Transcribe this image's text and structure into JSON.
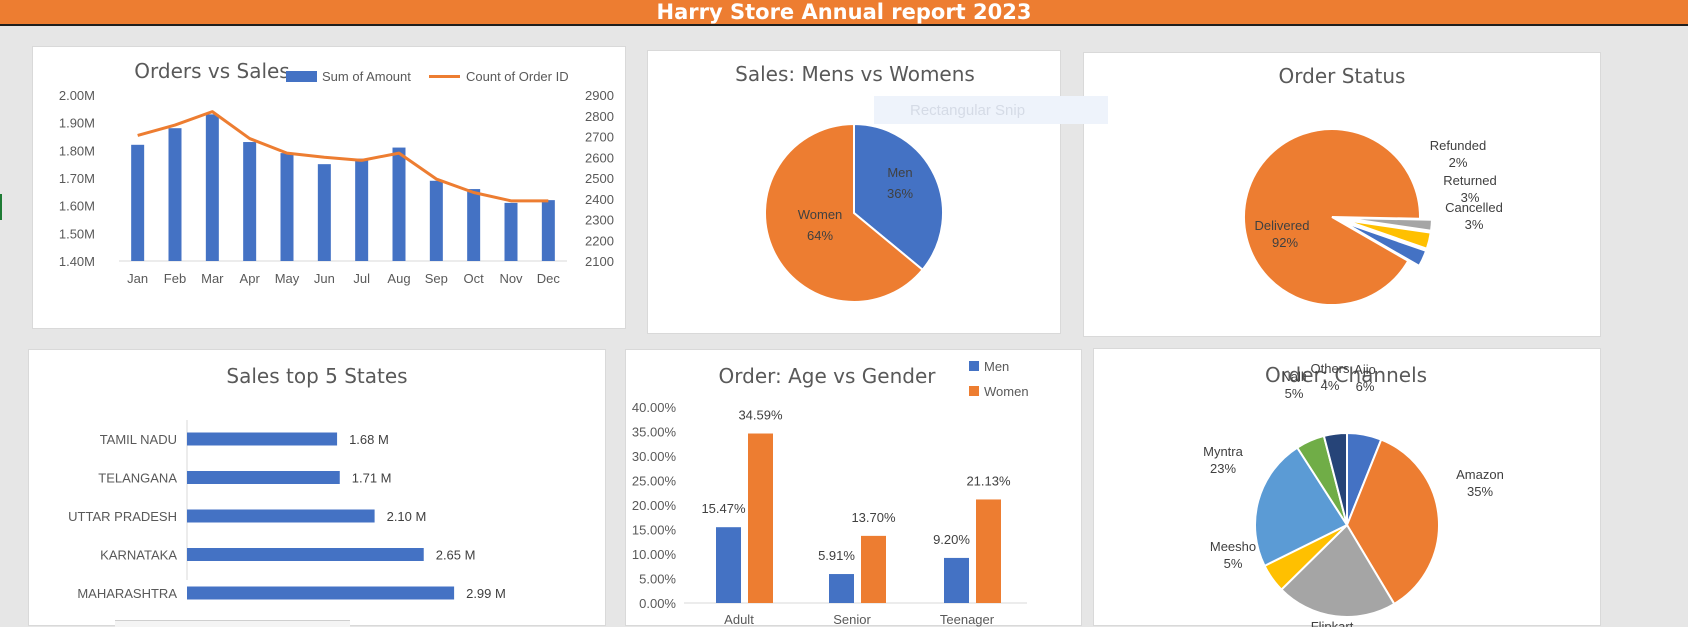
{
  "banner": {
    "title": "Harry Store Annual report 2023"
  },
  "ghost_tooltip": "Rectangular Snip",
  "colors": {
    "blue": "#4472c4",
    "orange": "#ed7d31",
    "gray": "#a5a5a5",
    "gold": "#ffc000",
    "lightblue": "#5b9bd5",
    "green": "#70ad47",
    "navy": "#264478"
  },
  "chart_data": [
    {
      "id": "orders_sales",
      "type": "bar",
      "title": "Orders vs Sales",
      "categories": [
        "Jan",
        "Feb",
        "Mar",
        "Apr",
        "May",
        "Jun",
        "Jul",
        "Aug",
        "Sep",
        "Oct",
        "Nov",
        "Dec"
      ],
      "series": [
        {
          "name": "Sum of Amount",
          "axis": "left",
          "values": [
            1.82,
            1.88,
            1.93,
            1.83,
            1.79,
            1.75,
            1.77,
            1.81,
            1.69,
            1.66,
            1.61,
            1.62
          ]
        },
        {
          "name": "Count of Order ID",
          "type": "line",
          "axis": "right",
          "values": [
            2705,
            2755,
            2820,
            2690,
            2620,
            2600,
            2585,
            2620,
            2495,
            2430,
            2390,
            2390
          ]
        }
      ],
      "ylim_left": [
        1.4,
        2.0
      ],
      "yticks_left": [
        "1.40M",
        "1.50M",
        "1.60M",
        "1.70M",
        "1.80M",
        "1.90M",
        "2.00M"
      ],
      "ylim_right": [
        2100,
        2900
      ],
      "yticks_right": [
        "2100",
        "2200",
        "2300",
        "2400",
        "2500",
        "2600",
        "2700",
        "2800",
        "2900"
      ],
      "legend": "top-right",
      "grid": false
    },
    {
      "id": "mens_womens",
      "type": "pie",
      "title": "Sales: Mens vs Womens",
      "slices": [
        {
          "label": "Men",
          "value": 36,
          "text": "36%"
        },
        {
          "label": "Women",
          "value": 64,
          "text": "64%"
        }
      ]
    },
    {
      "id": "order_status",
      "type": "pie",
      "title": "Order Status",
      "slices": [
        {
          "label": "Delivered",
          "value": 92,
          "text": "92%"
        },
        {
          "label": "Refunded",
          "value": 2,
          "text": "2%"
        },
        {
          "label": "Returned",
          "value": 3,
          "text": "3%"
        },
        {
          "label": "Cancelled",
          "value": 3,
          "text": "3%"
        }
      ]
    },
    {
      "id": "top_states",
      "type": "bar",
      "orientation": "horizontal",
      "title": "Sales top 5 States",
      "categories": [
        "TAMIL NADU",
        "TELANGANA",
        "UTTAR PRADESH",
        "KARNATAKA",
        "MAHARASHTRA"
      ],
      "values": [
        1.68,
        1.71,
        2.1,
        2.65,
        2.99
      ],
      "labels": [
        "1.68 M",
        "1.71 M",
        "2.10 M",
        "2.65 M",
        "2.99 M"
      ]
    },
    {
      "id": "age_gender",
      "type": "bar",
      "title": "Order: Age vs Gender",
      "categories": [
        "Adult",
        "Senior",
        "Teenager"
      ],
      "series": [
        {
          "name": "Men",
          "values": [
            15.47,
            5.91,
            9.2
          ],
          "labels": [
            "15.47%",
            "5.91%",
            "9.20%"
          ]
        },
        {
          "name": "Women",
          "values": [
            34.59,
            13.7,
            21.13
          ],
          "labels": [
            "34.59%",
            "13.70%",
            "21.13%"
          ]
        }
      ],
      "ylim": [
        0,
        40
      ],
      "yticks": [
        "0.00%",
        "5.00%",
        "10.00%",
        "15.00%",
        "20.00%",
        "25.00%",
        "30.00%",
        "35.00%",
        "40.00%"
      ],
      "legend": "top-right"
    },
    {
      "id": "channels",
      "type": "pie",
      "title": "Order: Channels",
      "slices": [
        {
          "label": "Ajio",
          "value": 6,
          "text": "6%"
        },
        {
          "label": "Amazon",
          "value": 35,
          "text": "35%"
        },
        {
          "label": "Flipkart",
          "value": 21,
          "text": ""
        },
        {
          "label": "Meesho",
          "value": 5,
          "text": "5%"
        },
        {
          "label": "Myntra",
          "value": 23,
          "text": "23%"
        },
        {
          "label": "Nalli",
          "value": 5,
          "text": "5%"
        },
        {
          "label": "Others",
          "value": 4,
          "text": "4%"
        }
      ]
    }
  ]
}
